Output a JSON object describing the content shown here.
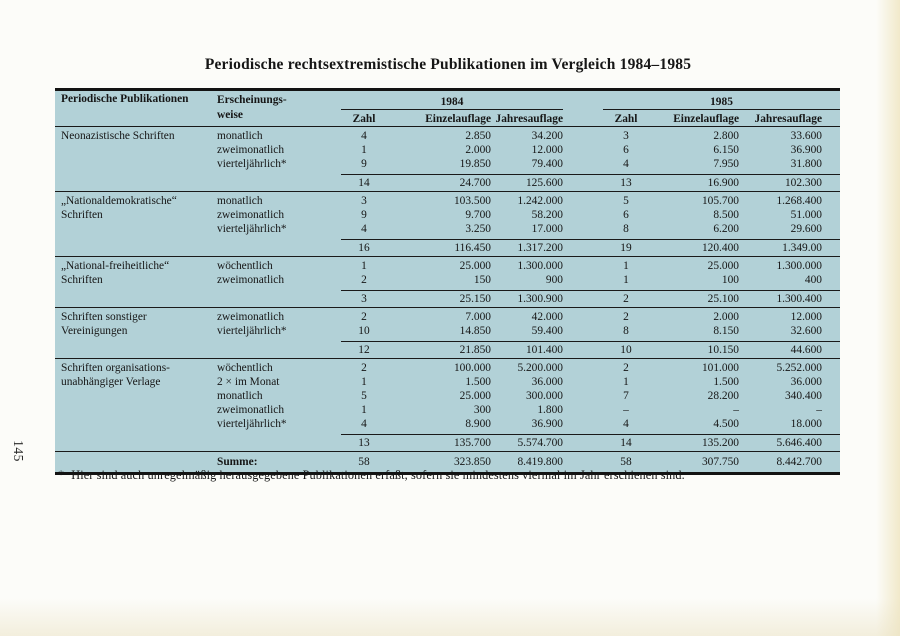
{
  "page": {
    "title": "Periodische rechtsextremistische Publikationen im Vergleich 1984–1985",
    "page_number": "145",
    "footnote_marker": "*",
    "footnote": "Hier sind auch unregelmäßig herausgegebene Publikationen erfaßt, sofern sie mindestens viermal im Jahr erschienen sind."
  },
  "colors": {
    "table_background": "#b2d1d7",
    "ink": "#161616",
    "paper": "#fcfcf9"
  },
  "table": {
    "col1_header": "Periodische Publikationen",
    "col2_header_line1": "Erscheinungs-",
    "col2_header_line2": "weise",
    "year_groups": [
      "1984",
      "1985"
    ],
    "sub_headers": [
      "Zahl",
      "Einzelauflage",
      "Jahresauflage"
    ],
    "blocks": [
      {
        "name_lines": [
          "Neonazistische Schriften"
        ],
        "rows": [
          {
            "freq": "monatlich",
            "v": [
              "4",
              "2.850",
              "34.200",
              "3",
              "2.800",
              "33.600"
            ]
          },
          {
            "freq": "zweimonatlich",
            "v": [
              "1",
              "2.000",
              "12.000",
              "6",
              "6.150",
              "36.900"
            ]
          },
          {
            "freq": "vierteljährlich*",
            "v": [
              "9",
              "19.850",
              "79.400",
              "4",
              "7.950",
              "31.800"
            ]
          }
        ],
        "subtotal": [
          "14",
          "24.700",
          "125.600",
          "13",
          "16.900",
          "102.300"
        ]
      },
      {
        "name_lines": [
          "„Nationaldemokratische“",
          "Schriften"
        ],
        "rows": [
          {
            "freq": "monatlich",
            "v": [
              "3",
              "103.500",
              "1.242.000",
              "5",
              "105.700",
              "1.268.400"
            ]
          },
          {
            "freq": "zweimonatlich",
            "v": [
              "9",
              "9.700",
              "58.200",
              "6",
              "8.500",
              "51.000"
            ]
          },
          {
            "freq": "vierteljährlich*",
            "v": [
              "4",
              "3.250",
              "17.000",
              "8",
              "6.200",
              "29.600"
            ]
          }
        ],
        "subtotal": [
          "16",
          "116.450",
          "1.317.200",
          "19",
          "120.400",
          "1.349.00"
        ]
      },
      {
        "name_lines": [
          "„National-freiheitliche“",
          "Schriften"
        ],
        "rows": [
          {
            "freq": "wöchentlich",
            "v": [
              "1",
              "25.000",
              "1.300.000",
              "1",
              "25.000",
              "1.300.000"
            ]
          },
          {
            "freq": "zweimonatlich",
            "v": [
              "2",
              "150",
              "900",
              "1",
              "100",
              "400"
            ]
          }
        ],
        "subtotal": [
          "3",
          "25.150",
          "1.300.900",
          "2",
          "25.100",
          "1.300.400"
        ]
      },
      {
        "name_lines": [
          "Schriften sonstiger",
          "Vereinigungen"
        ],
        "rows": [
          {
            "freq": "zweimonatlich",
            "v": [
              "2",
              "7.000",
              "42.000",
              "2",
              "2.000",
              "12.000"
            ]
          },
          {
            "freq": "vierteljährlich*",
            "v": [
              "10",
              "14.850",
              "59.400",
              "8",
              "8.150",
              "32.600"
            ]
          }
        ],
        "subtotal": [
          "12",
          "21.850",
          "101.400",
          "10",
          "10.150",
          "44.600"
        ]
      },
      {
        "name_lines": [
          "Schriften organisations-",
          "unabhängiger Verlage"
        ],
        "rows": [
          {
            "freq": "wöchentlich",
            "v": [
              "2",
              "100.000",
              "5.200.000",
              "2",
              "101.000",
              "5.252.000"
            ]
          },
          {
            "freq": "2 × im Monat",
            "v": [
              "1",
              "1.500",
              "36.000",
              "1",
              "1.500",
              "36.000"
            ]
          },
          {
            "freq": "monatlich",
            "v": [
              "5",
              "25.000",
              "300.000",
              "7",
              "28.200",
              "340.400"
            ]
          },
          {
            "freq": "zweimonatlich",
            "v": [
              "1",
              "300",
              "1.800",
              "–",
              "–",
              "–"
            ]
          },
          {
            "freq": "vierteljährlich*",
            "v": [
              "4",
              "8.900",
              "36.900",
              "4",
              "4.500",
              "18.000"
            ]
          }
        ],
        "subtotal": [
          "13",
          "135.700",
          "5.574.700",
          "14",
          "135.200",
          "5.646.400"
        ]
      }
    ],
    "total_label": "Summe:",
    "total": [
      "58",
      "323.850",
      "8.419.800",
      "58",
      "307.750",
      "8.442.700"
    ]
  }
}
